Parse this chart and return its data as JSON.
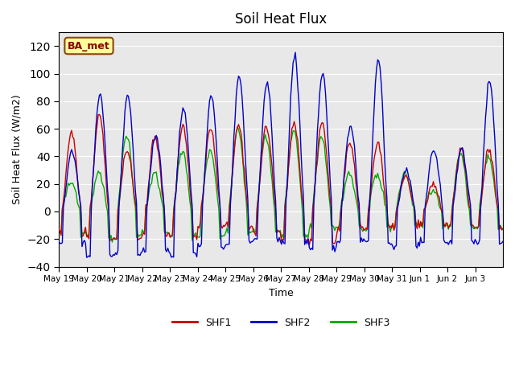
{
  "title": "Soil Heat Flux",
  "xlabel": "Time",
  "ylabel": "Soil Heat Flux (W/m2)",
  "ylim": [
    -40,
    130
  ],
  "yticks": [
    -40,
    -20,
    0,
    20,
    40,
    60,
    80,
    100,
    120
  ],
  "colors": {
    "SHF1": "#cc0000",
    "SHF2": "#0000cc",
    "SHF3": "#00aa00"
  },
  "bg_color": "#e8e8e8",
  "annotation_text": "BA_met",
  "annotation_facecolor": "#ffff99",
  "annotation_edgecolor": "#8b4513",
  "annotation_textcolor": "#8b0000",
  "xtick_labels": [
    "May 19",
    "May 20",
    "May 21",
    "May 22",
    "May 23",
    "May 24",
    "May 25",
    "May 26",
    "May 27",
    "May 28",
    "May 29",
    "May 30",
    "May 31",
    "Jun 1",
    "Jun 2",
    "Jun 3"
  ],
  "day_peaks_shf1": [
    57,
    70,
    44,
    55,
    62,
    61,
    63,
    62,
    65,
    65,
    50,
    50,
    25,
    20,
    45,
    45
  ],
  "day_peaks_shf2": [
    44,
    85,
    85,
    55,
    75,
    85,
    98,
    95,
    113,
    100,
    63,
    110,
    30,
    46,
    46,
    95
  ],
  "day_peaks_shf3": [
    22,
    28,
    55,
    28,
    44,
    45,
    60,
    55,
    60,
    55,
    28,
    28,
    28,
    15,
    42,
    40
  ],
  "night_shf1": [
    -15,
    -20,
    -20,
    -17,
    -18,
    -10,
    -10,
    -15,
    -20,
    -22,
    -12,
    -12,
    -10,
    -10,
    -12,
    -12
  ],
  "night_shf2": [
    -23,
    -32,
    -32,
    -28,
    -32,
    -25,
    -22,
    -20,
    -22,
    -27,
    -22,
    -22,
    -25,
    -22,
    -22,
    -22
  ],
  "night_shf3": [
    -15,
    -18,
    -18,
    -15,
    -18,
    -18,
    -15,
    -15,
    -18,
    -12,
    -12,
    -12,
    -10,
    -10,
    -12,
    -12
  ],
  "n_days": 16
}
